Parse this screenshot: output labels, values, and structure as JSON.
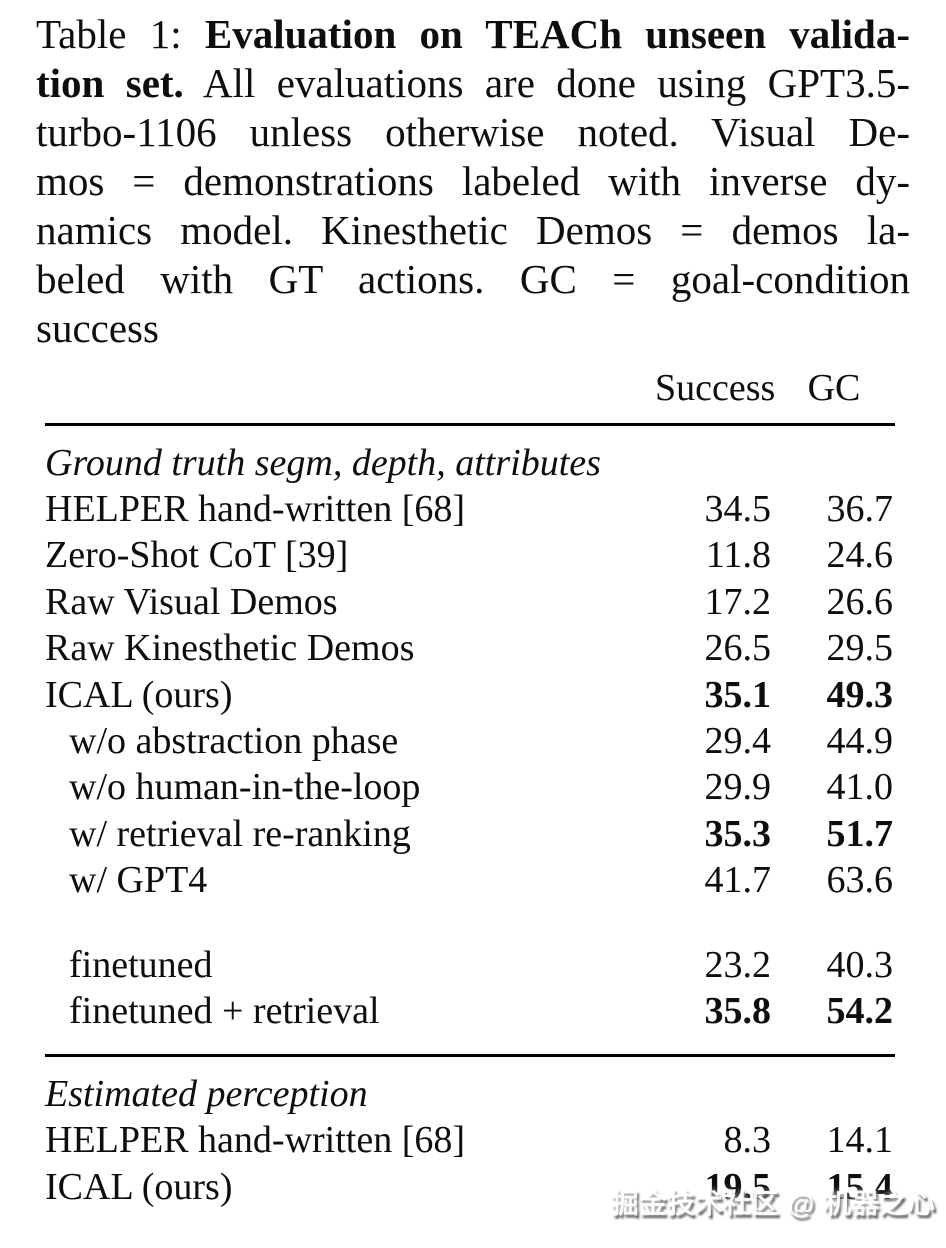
{
  "caption": {
    "lines": [
      {
        "pre": "Table 1: ",
        "bold": "Evaluation on TEACh unseen valida-",
        "post": ""
      },
      {
        "pre": "",
        "bold": "tion set.",
        "post": " All evaluations are done using GPT3.5-"
      },
      {
        "pre": "turbo-1106 unless otherwise noted. Visual De-",
        "bold": "",
        "post": ""
      },
      {
        "pre": "mos = demonstrations labeled with inverse dy-",
        "bold": "",
        "post": ""
      },
      {
        "pre": "namics model. Kinesthetic Demos = demos la-",
        "bold": "",
        "post": ""
      },
      {
        "pre": "beled with GT actions. GC = goal-condition",
        "bold": "",
        "post": ""
      },
      {
        "pre": "success",
        "bold": "",
        "post": ""
      }
    ]
  },
  "table": {
    "col_headers": {
      "success": "Success",
      "gc": "GC"
    },
    "section1": {
      "heading": "Ground truth segm, depth, attributes",
      "rows": [
        {
          "label": "HELPER hand-written [68]",
          "success": "34.5",
          "gc": "36.7"
        },
        {
          "label": "Zero-Shot CoT [39]",
          "success": "11.8",
          "gc": "24.6"
        },
        {
          "label": "Raw Visual Demos",
          "success": "17.2",
          "gc": "26.6"
        },
        {
          "label": "Raw Kinesthetic Demos",
          "success": "26.5",
          "gc": "29.5"
        },
        {
          "label": "ICAL (ours)",
          "success": "35.1",
          "gc": "49.3"
        },
        {
          "label": "w/o abstraction phase",
          "success": "29.4",
          "gc": "44.9"
        },
        {
          "label": "w/o human-in-the-loop",
          "success": "29.9",
          "gc": "41.0"
        },
        {
          "label": "w/ retrieval re-ranking",
          "success": "35.3",
          "gc": "51.7"
        },
        {
          "label": "w/ GPT4",
          "success": "41.7",
          "gc": "63.6"
        },
        {
          "label": "finetuned",
          "success": "23.2",
          "gc": "40.3"
        },
        {
          "label": "finetuned + retrieval",
          "success": "35.8",
          "gc": "54.2"
        }
      ]
    },
    "section2": {
      "heading": "Estimated perception",
      "rows": [
        {
          "label": "HELPER hand-written [68]",
          "success": "8.3",
          "gc": "14.1"
        },
        {
          "label": "ICAL (ours)",
          "success": "19.5",
          "gc": "15.4"
        }
      ]
    }
  },
  "watermark": {
    "text": "掘金技术社区 @ 机器之心"
  }
}
